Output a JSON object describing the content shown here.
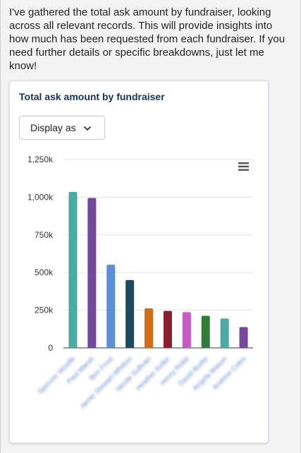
{
  "message": {
    "text": "I've gathered the total ask amount by fundraiser, looking across all relevant records. This will provide insights into how much has been requested from each fundraiser. If you need further details or specific breakdowns, just let me know!"
  },
  "card": {
    "title": "Total ask amount by fundraiser",
    "display_button_label": "Display as"
  },
  "icons": {
    "menu": "hamburger-menu-icon",
    "chevron": "chevron-down-icon"
  },
  "colors": {
    "title": "#16325c",
    "grid": "#e5e5e5",
    "axis": "#333333"
  },
  "chart_data": {
    "type": "bar",
    "title": "Total ask amount by fundraiser",
    "categories": [
      "Spencer Woolfe",
      "Paul Marsh",
      "Ben Frost",
      "Jamie Stewart-Whitton",
      "Nicole Sullivan",
      "Heather Keller",
      "Henry Robb",
      "David Burke",
      "Angela Mason",
      "Andrew Coles"
    ],
    "values": [
      1035000,
      995000,
      552000,
      450000,
      262000,
      245000,
      237000,
      213000,
      195000,
      138000
    ],
    "colors": [
      "#4ca9a3",
      "#73479c",
      "#5b8fdb",
      "#1c4a5e",
      "#d56b12",
      "#8b1f2e",
      "#c958c9",
      "#2f7d3a",
      "#4ca9a3",
      "#73479c"
    ],
    "yticks": [
      "0",
      "250k",
      "500k",
      "750k",
      "1,000k",
      "1,250k"
    ],
    "ylim": [
      0,
      1250000
    ],
    "xlabel": "",
    "ylabel": "",
    "grid": true,
    "legend": "none"
  }
}
